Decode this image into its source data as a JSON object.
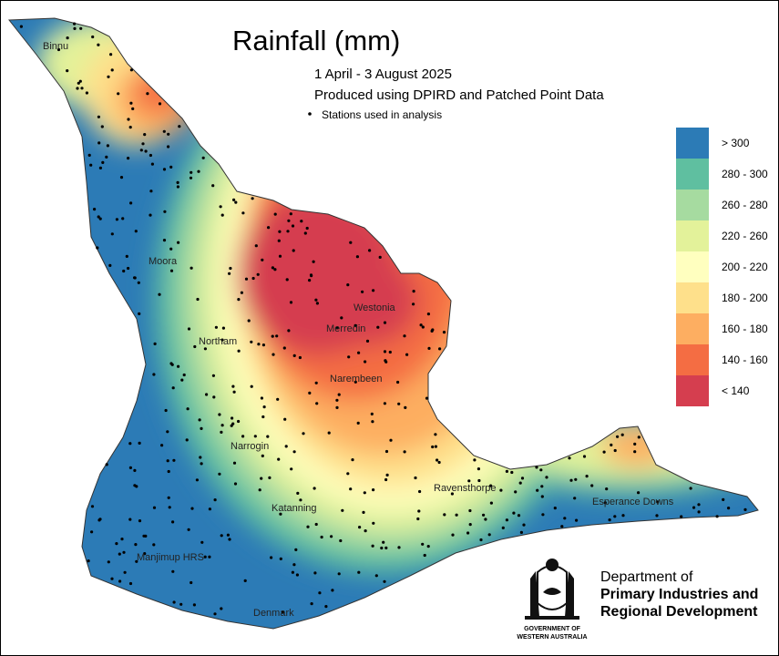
{
  "title": "Rainfall (mm)",
  "subtitle": [
    "1 April - 3 August 2025",
    "Produced using DPIRD and Patched Point Data"
  ],
  "stations_note": "Stations used in analysis",
  "legend": [
    {
      "label": "> 300",
      "color": "#2c7bb6"
    },
    {
      "label": "280 - 300",
      "color": "#5fbfa0"
    },
    {
      "label": "260 - 280",
      "color": "#a6dba0"
    },
    {
      "label": "220 - 260",
      "color": "#e3f29a"
    },
    {
      "label": "200 - 220",
      "color": "#ffffbf"
    },
    {
      "label": "180 - 200",
      "color": "#fee08b"
    },
    {
      "label": "160 - 180",
      "color": "#fdae61"
    },
    {
      "label": "140 - 160",
      "color": "#f46d43"
    },
    {
      "label": "< 140",
      "color": "#d53e4f"
    }
  ],
  "places": [
    "Binnu",
    "Moora",
    "Westonia",
    "Merredin",
    "Northam",
    "Narembeen",
    "Narrogin",
    "Ravensthorpe",
    "Esperance Downs",
    "Katanning",
    "Manjimup HRS",
    "Denmark"
  ],
  "logo": {
    "department": [
      "Department of",
      "Primary Industries and",
      "Regional Development"
    ],
    "government": [
      "GOVERNMENT OF",
      "WESTERN AUSTRALIA"
    ]
  }
}
